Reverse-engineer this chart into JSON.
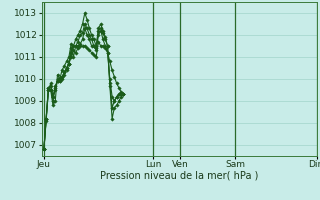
{
  "background_color": "#c8ece8",
  "grid_color": "#a8d8d0",
  "line_color": "#1a5c1a",
  "marker_color": "#1a5c1a",
  "xlabel": "Pression niveau de la mer( hPa )",
  "ylim": [
    1006.5,
    1013.5
  ],
  "yticks": [
    1007,
    1008,
    1009,
    1010,
    1011,
    1012,
    1013
  ],
  "day_labels": [
    "Jeu",
    "Lun",
    "Ven",
    "Sam",
    "Dim"
  ],
  "day_positions": [
    0,
    48,
    60,
    84,
    120
  ],
  "vline_color": "#2a6a2a",
  "series": [
    [
      1006.8,
      1008.2,
      1009.5,
      1009.8,
      1009.2,
      1009.7,
      1009.9,
      1010.0,
      1010.1,
      1010.3,
      1010.5,
      1010.7,
      1011.0,
      1011.3,
      1011.2,
      1011.4,
      1011.5,
      1011.5,
      1011.5,
      1011.4,
      1011.3,
      1011.2,
      1011.1,
      1011.0,
      1011.7,
      1011.5,
      1011.5,
      1011.4,
      1011.2,
      1010.8,
      1010.4,
      1010.1,
      1009.8,
      1009.6,
      1009.4,
      1009.3
    ],
    [
      1006.8,
      1008.1,
      1009.5,
      1009.7,
      1009.0,
      1009.6,
      1009.9,
      1009.9,
      1010.0,
      1010.2,
      1010.4,
      1010.7,
      1011.2,
      1011.5,
      1011.5,
      1011.7,
      1012.0,
      1012.1,
      1012.5,
      1012.3,
      1012.0,
      1011.8,
      1011.5,
      1011.4,
      1012.2,
      1012.3,
      1012.1,
      1011.8,
      1011.5,
      1009.8,
      1008.7,
      1009.0,
      1009.2,
      1009.3,
      1009.3,
      1009.3
    ],
    [
      1006.8,
      1008.2,
      1009.6,
      1009.5,
      1008.8,
      1009.0,
      1010.2,
      1010.0,
      1010.4,
      1010.6,
      1010.8,
      1011.0,
      1011.6,
      1011.5,
      1011.8,
      1012.0,
      1012.2,
      1012.5,
      1013.0,
      1012.7,
      1012.3,
      1012.0,
      1011.8,
      1011.5,
      1012.3,
      1012.5,
      1012.2,
      1011.9,
      1011.5,
      1009.7,
      1008.2,
      1008.7,
      1008.8,
      1009.0,
      1009.2,
      1009.3
    ],
    [
      1006.8,
      1008.2,
      1009.6,
      1009.5,
      1009.2,
      1009.5,
      1010.0,
      1009.9,
      1010.1,
      1010.3,
      1010.5,
      1010.7,
      1011.4,
      1011.0,
      1011.5,
      1011.5,
      1011.6,
      1011.8,
      1012.3,
      1012.0,
      1011.8,
      1011.5,
      1011.5,
      1011.3,
      1012.0,
      1012.2,
      1011.8,
      1011.5,
      1011.2,
      1010.0,
      1009.2,
      1009.0,
      1009.2,
      1009.3,
      1009.3,
      1009.3
    ]
  ],
  "n_points": 36
}
